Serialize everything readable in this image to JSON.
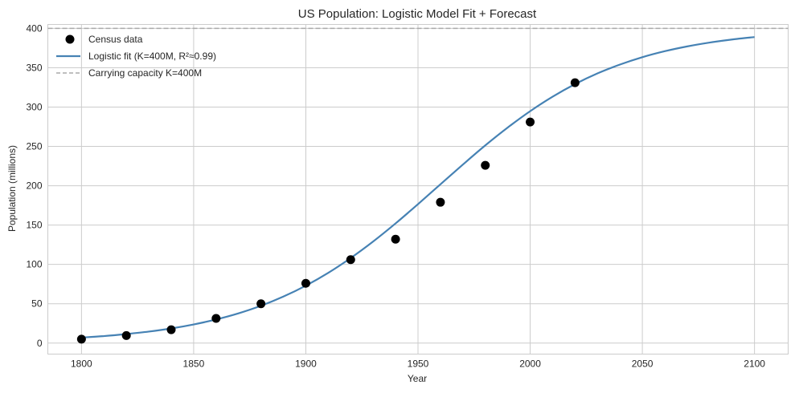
{
  "chart_data": {
    "type": "line",
    "title": "US Population: Logistic Model Fit + Forecast",
    "xlabel": "Year",
    "ylabel": "Population (millions)",
    "xlim": [
      1785,
      2115
    ],
    "ylim": [
      -14,
      405
    ],
    "xticks": [
      1800,
      1850,
      1900,
      1950,
      2000,
      2050,
      2100
    ],
    "yticks": [
      0,
      50,
      100,
      150,
      200,
      250,
      300,
      350,
      400
    ],
    "grid": true,
    "legend_position": "top-left",
    "series": [
      {
        "name": "Census data",
        "kind": "scatter",
        "color": "#000000",
        "x": [
          1800,
          1820,
          1840,
          1860,
          1880,
          1900,
          1920,
          1940,
          1960,
          1980,
          2000,
          2020
        ],
        "y": [
          5,
          9.6,
          17,
          31.4,
          50,
          76,
          106,
          132,
          179,
          226,
          281,
          331
        ]
      },
      {
        "name": "Logistic fit (K=400M, R²≈0.99)",
        "kind": "line",
        "color": "#4682b4",
        "x": [
          1800,
          1810,
          1820,
          1830,
          1840,
          1850,
          1860,
          1870,
          1880,
          1890,
          1900,
          1910,
          1920,
          1930,
          1940,
          1950,
          1960,
          1970,
          1980,
          1990,
          2000,
          2010,
          2020,
          2030,
          2040,
          2050,
          2060,
          2070,
          2080,
          2090,
          2100
        ],
        "y": [
          7.0,
          8.9,
          11.5,
          14.6,
          18.6,
          23.7,
          30.0,
          37.8,
          47.4,
          59.1,
          73.0,
          89.3,
          108.1,
          129.1,
          152.1,
          176.6,
          201.8,
          226.9,
          251.3,
          274.0,
          294.8,
          313.2,
          329.2,
          342.8,
          354.0,
          363.4,
          371.0,
          377.1,
          382.0,
          385.9,
          389.0
        ]
      },
      {
        "name": "Carrying capacity K=400M",
        "kind": "hline",
        "color": "#aaaaaa",
        "y": 400
      }
    ]
  }
}
